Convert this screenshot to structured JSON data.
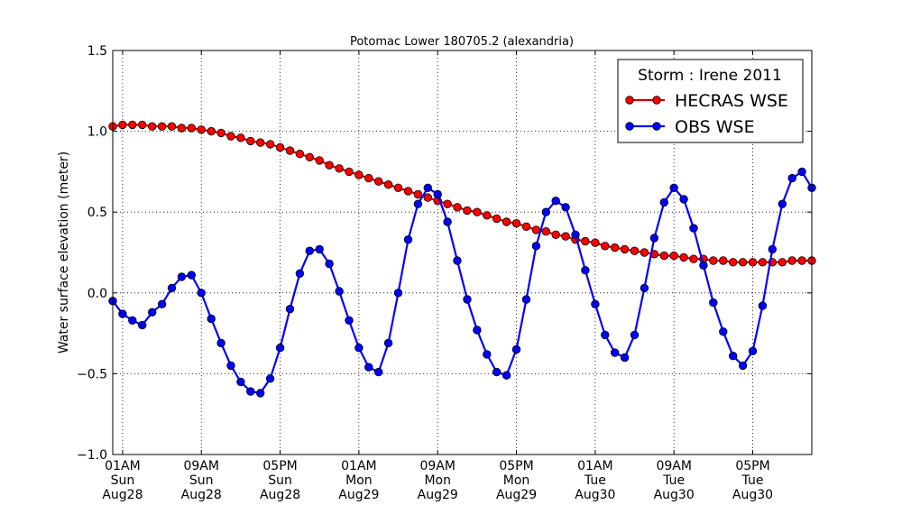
{
  "chart_data": {
    "type": "line",
    "title": "Potomac Lower 180705.2 (alexandria)",
    "xlabel": "",
    "ylabel": "Water surface elevation (meter)",
    "ylim": [
      -1.0,
      1.5
    ],
    "xlim": [
      "2011-08-28 00:00",
      "2011-08-30 23:00"
    ],
    "grid": true,
    "yticks": [
      "−1.0",
      "−0.5",
      "0.0",
      "0.5",
      "1.0",
      "1.5"
    ],
    "xticks": [
      {
        "time": "2011-08-28 01:00",
        "lines": [
          "01AM",
          "Sun",
          "Aug28"
        ]
      },
      {
        "time": "2011-08-28 09:00",
        "lines": [
          "09AM",
          "Sun",
          "Aug28"
        ]
      },
      {
        "time": "2011-08-28 17:00",
        "lines": [
          "05PM",
          "Sun",
          "Aug28"
        ]
      },
      {
        "time": "2011-08-29 01:00",
        "lines": [
          "01AM",
          "Mon",
          "Aug29"
        ]
      },
      {
        "time": "2011-08-29 09:00",
        "lines": [
          "09AM",
          "Mon",
          "Aug29"
        ]
      },
      {
        "time": "2011-08-29 17:00",
        "lines": [
          "05PM",
          "Mon",
          "Aug29"
        ]
      },
      {
        "time": "2011-08-30 01:00",
        "lines": [
          "01AM",
          "Tue",
          "Aug30"
        ]
      },
      {
        "time": "2011-08-30 09:00",
        "lines": [
          "09AM",
          "Tue",
          "Aug30"
        ]
      },
      {
        "time": "2011-08-30 17:00",
        "lines": [
          "05PM",
          "Tue",
          "Aug30"
        ]
      }
    ],
    "legend": {
      "title": "Storm : Irene 2011",
      "position": "top-right"
    },
    "x": [
      "2011-08-28 00:00",
      "2011-08-28 01:00",
      "2011-08-28 02:00",
      "2011-08-28 03:00",
      "2011-08-28 04:00",
      "2011-08-28 05:00",
      "2011-08-28 06:00",
      "2011-08-28 07:00",
      "2011-08-28 08:00",
      "2011-08-28 09:00",
      "2011-08-28 10:00",
      "2011-08-28 11:00",
      "2011-08-28 12:00",
      "2011-08-28 13:00",
      "2011-08-28 14:00",
      "2011-08-28 15:00",
      "2011-08-28 16:00",
      "2011-08-28 17:00",
      "2011-08-28 18:00",
      "2011-08-28 19:00",
      "2011-08-28 20:00",
      "2011-08-28 21:00",
      "2011-08-28 22:00",
      "2011-08-28 23:00",
      "2011-08-29 00:00",
      "2011-08-29 01:00",
      "2011-08-29 02:00",
      "2011-08-29 03:00",
      "2011-08-29 04:00",
      "2011-08-29 05:00",
      "2011-08-29 06:00",
      "2011-08-29 07:00",
      "2011-08-29 08:00",
      "2011-08-29 09:00",
      "2011-08-29 10:00",
      "2011-08-29 11:00",
      "2011-08-29 12:00",
      "2011-08-29 13:00",
      "2011-08-29 14:00",
      "2011-08-29 15:00",
      "2011-08-29 16:00",
      "2011-08-29 17:00",
      "2011-08-29 18:00",
      "2011-08-29 19:00",
      "2011-08-29 20:00",
      "2011-08-29 21:00",
      "2011-08-29 22:00",
      "2011-08-29 23:00",
      "2011-08-30 00:00",
      "2011-08-30 01:00",
      "2011-08-30 02:00",
      "2011-08-30 03:00",
      "2011-08-30 04:00",
      "2011-08-30 05:00",
      "2011-08-30 06:00",
      "2011-08-30 07:00",
      "2011-08-30 08:00",
      "2011-08-30 09:00",
      "2011-08-30 10:00",
      "2011-08-30 11:00",
      "2011-08-30 12:00",
      "2011-08-30 13:00",
      "2011-08-30 14:00",
      "2011-08-30 15:00",
      "2011-08-30 16:00",
      "2011-08-30 17:00",
      "2011-08-30 18:00",
      "2011-08-30 19:00",
      "2011-08-30 20:00",
      "2011-08-30 21:00",
      "2011-08-30 22:00",
      "2011-08-30 23:00"
    ],
    "series": [
      {
        "name": "HECRAS WSE",
        "color": "#ff0000",
        "line_color": "#cc0000",
        "values": [
          1.03,
          1.04,
          1.04,
          1.04,
          1.03,
          1.03,
          1.03,
          1.02,
          1.02,
          1.01,
          1.0,
          0.99,
          0.97,
          0.96,
          0.94,
          0.93,
          0.92,
          0.9,
          0.88,
          0.86,
          0.84,
          0.82,
          0.79,
          0.77,
          0.75,
          0.73,
          0.71,
          0.69,
          0.67,
          0.65,
          0.63,
          0.61,
          0.59,
          0.57,
          0.55,
          0.53,
          0.51,
          0.5,
          0.48,
          0.46,
          0.44,
          0.43,
          0.41,
          0.39,
          0.38,
          0.36,
          0.35,
          0.33,
          0.32,
          0.31,
          0.29,
          0.28,
          0.27,
          0.26,
          0.25,
          0.24,
          0.23,
          0.23,
          0.22,
          0.21,
          0.21,
          0.2,
          0.2,
          0.19,
          0.19,
          0.19,
          0.19,
          0.19,
          0.19,
          0.2,
          0.2,
          0.2
        ]
      },
      {
        "name": "OBS WSE",
        "color": "#0000ff",
        "line_color": "#0000ff",
        "values": [
          -0.05,
          -0.13,
          -0.17,
          -0.2,
          -0.12,
          -0.07,
          0.03,
          0.1,
          0.11,
          0.0,
          -0.16,
          -0.31,
          -0.45,
          -0.55,
          -0.61,
          -0.62,
          -0.53,
          -0.34,
          -0.1,
          0.12,
          0.26,
          0.27,
          0.18,
          0.01,
          -0.17,
          -0.34,
          -0.46,
          -0.49,
          -0.31,
          0.0,
          0.33,
          0.55,
          0.65,
          0.61,
          0.44,
          0.2,
          -0.04,
          -0.23,
          -0.38,
          -0.49,
          -0.51,
          -0.35,
          -0.04,
          0.29,
          0.5,
          0.57,
          0.53,
          0.36,
          0.14,
          -0.07,
          -0.26,
          -0.37,
          -0.4,
          -0.26,
          0.03,
          0.34,
          0.56,
          0.65,
          0.58,
          0.4,
          0.17,
          -0.06,
          -0.24,
          -0.39,
          -0.45,
          -0.36,
          -0.08,
          0.27,
          0.55,
          0.71,
          0.75,
          0.65
        ]
      }
    ]
  }
}
